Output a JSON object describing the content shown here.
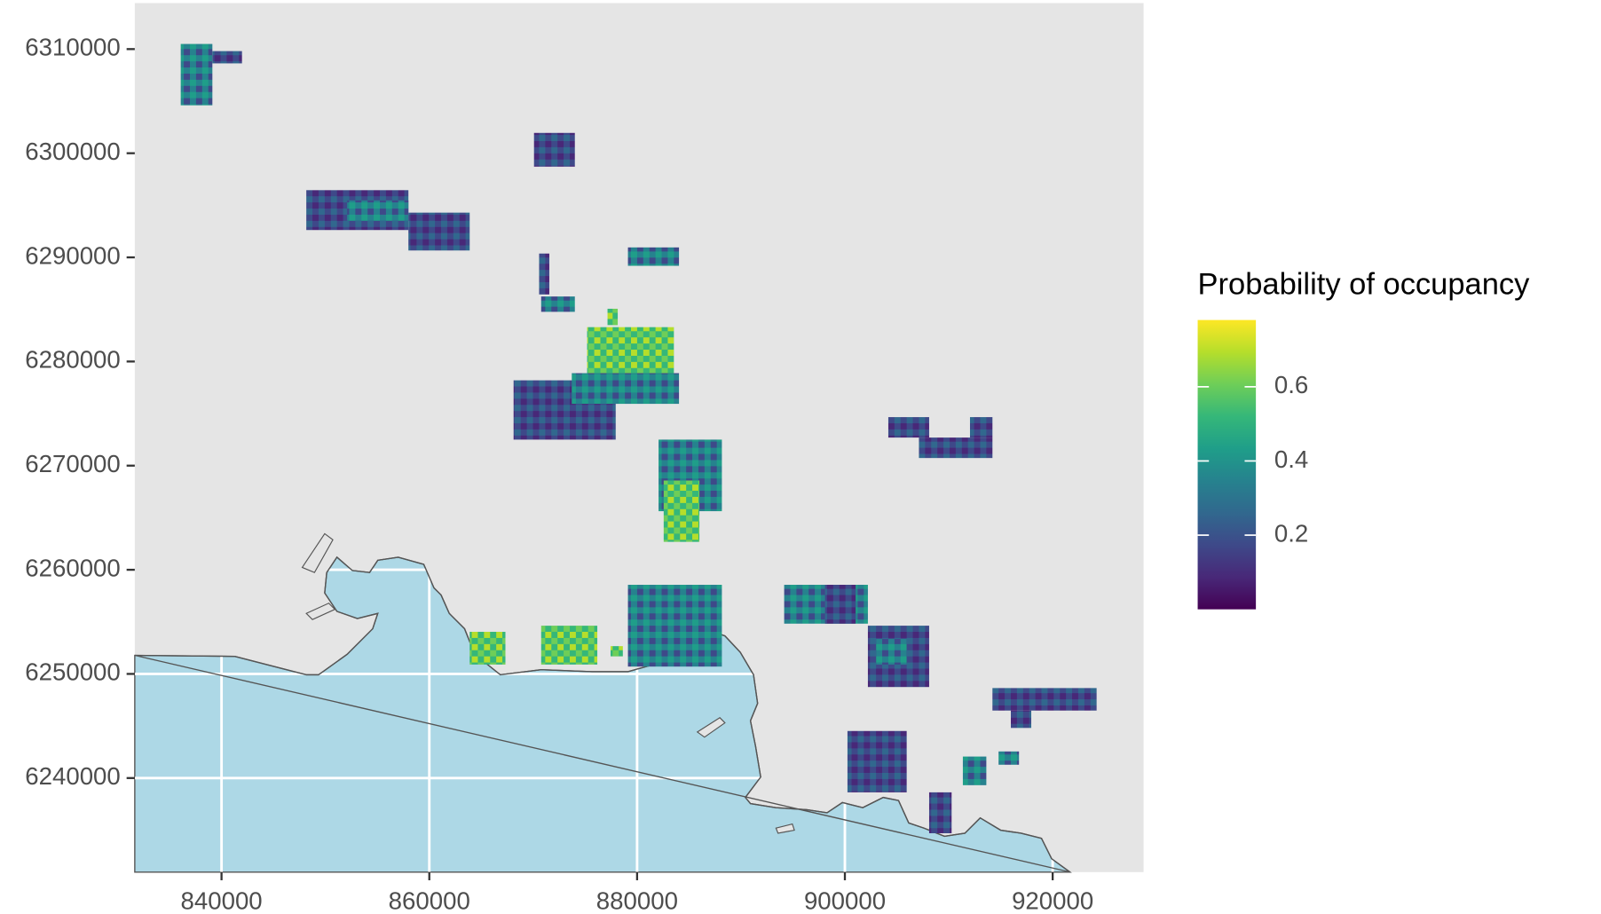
{
  "chart_data": {
    "type": "map",
    "xlim": [
      831650,
      928750
    ],
    "ylim": [
      6230970,
      6314420
    ],
    "xticks": [
      840000,
      860000,
      880000,
      900000,
      920000
    ],
    "yticks": [
      6240000,
      6250000,
      6260000,
      6270000,
      6280000,
      6290000,
      6300000,
      6310000
    ],
    "grid": true,
    "legend": {
      "title": "Probability of occupancy",
      "position": "right",
      "lim": [
        0,
        0.78
      ],
      "ticks": [
        0.2,
        0.4,
        0.6
      ],
      "palette": [
        "#440154",
        "#482878",
        "#3e4989",
        "#31688e",
        "#26828e",
        "#1f9e89",
        "#35b779",
        "#6ece58",
        "#b5de2b",
        "#fde725"
      ]
    }
  }
}
